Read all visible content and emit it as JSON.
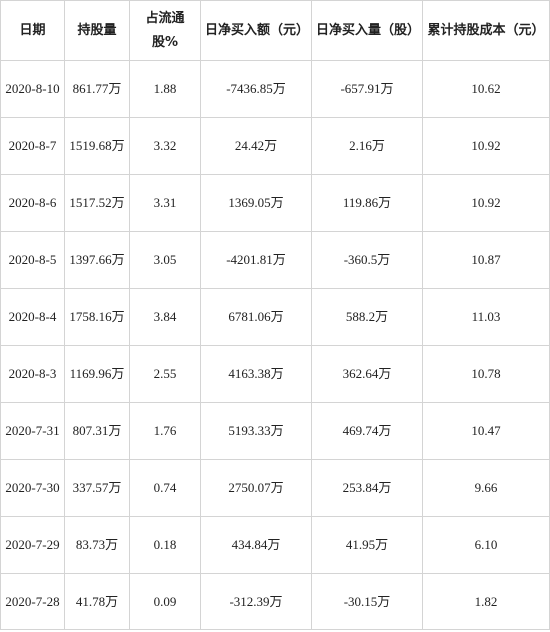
{
  "table": {
    "headers": [
      "日期",
      "持股量",
      "占流通股%",
      "日净买入额（元）",
      "日净买入量（股）",
      "累计持股成本（元）"
    ],
    "rows": [
      [
        "2020-8-10",
        "861.77万",
        "1.88",
        "-7436.85万",
        "-657.91万",
        "10.62"
      ],
      [
        "2020-8-7",
        "1519.68万",
        "3.32",
        "24.42万",
        "2.16万",
        "10.92"
      ],
      [
        "2020-8-6",
        "1517.52万",
        "3.31",
        "1369.05万",
        "119.86万",
        "10.92"
      ],
      [
        "2020-8-5",
        "1397.66万",
        "3.05",
        "-4201.81万",
        "-360.5万",
        "10.87"
      ],
      [
        "2020-8-4",
        "1758.16万",
        "3.84",
        "6781.06万",
        "588.2万",
        "11.03"
      ],
      [
        "2020-8-3",
        "1169.96万",
        "2.55",
        "4163.38万",
        "362.64万",
        "10.78"
      ],
      [
        "2020-7-31",
        "807.31万",
        "1.76",
        "5193.33万",
        "469.74万",
        "10.47"
      ],
      [
        "2020-7-30",
        "337.57万",
        "0.74",
        "2750.07万",
        "253.84万",
        "9.66"
      ],
      [
        "2020-7-29",
        "83.73万",
        "0.18",
        "434.84万",
        "41.95万",
        "6.10"
      ],
      [
        "2020-7-28",
        "41.78万",
        "0.09",
        "-312.39万",
        "-30.15万",
        "1.82"
      ]
    ]
  }
}
